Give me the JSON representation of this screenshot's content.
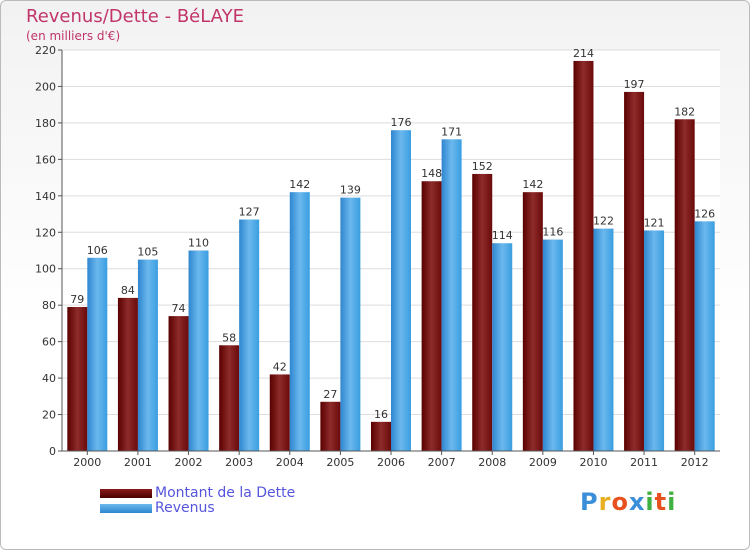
{
  "header": {
    "title": "Revenus/Dette - BéLAYE",
    "subtitle": "(en milliers d'€)"
  },
  "legend": {
    "items": [
      {
        "label": "Montant de la Dette",
        "color": "#6b0a0a"
      },
      {
        "label": "Revenus",
        "color": "#3a9ee0"
      }
    ]
  },
  "logo": {
    "text": "Proxiti",
    "letter_colors": [
      "#3a8fd8",
      "#e8b020",
      "#e85020",
      "#3a8fd8",
      "#40b040",
      "#e85020",
      "#40b040"
    ]
  },
  "chart_data": {
    "type": "bar",
    "categories": [
      "2000",
      "2001",
      "2002",
      "2003",
      "2004",
      "2005",
      "2006",
      "2007",
      "2008",
      "2009",
      "2010",
      "2011",
      "2012"
    ],
    "series": [
      {
        "name": "Montant de la Dette",
        "color": "#6b0a0a",
        "values": [
          79,
          84,
          74,
          58,
          42,
          27,
          16,
          148,
          152,
          142,
          214,
          197,
          182
        ]
      },
      {
        "name": "Revenus",
        "color": "#3a9ee0",
        "values": [
          106,
          105,
          110,
          127,
          142,
          139,
          176,
          171,
          114,
          116,
          122,
          121,
          126
        ]
      }
    ],
    "y_ticks": [
      0,
      20,
      40,
      60,
      80,
      100,
      120,
      140,
      160,
      180,
      200,
      220
    ],
    "ylim": [
      0,
      220
    ],
    "grid": true,
    "data_labels": true,
    "legend_position": "bottom-left"
  }
}
